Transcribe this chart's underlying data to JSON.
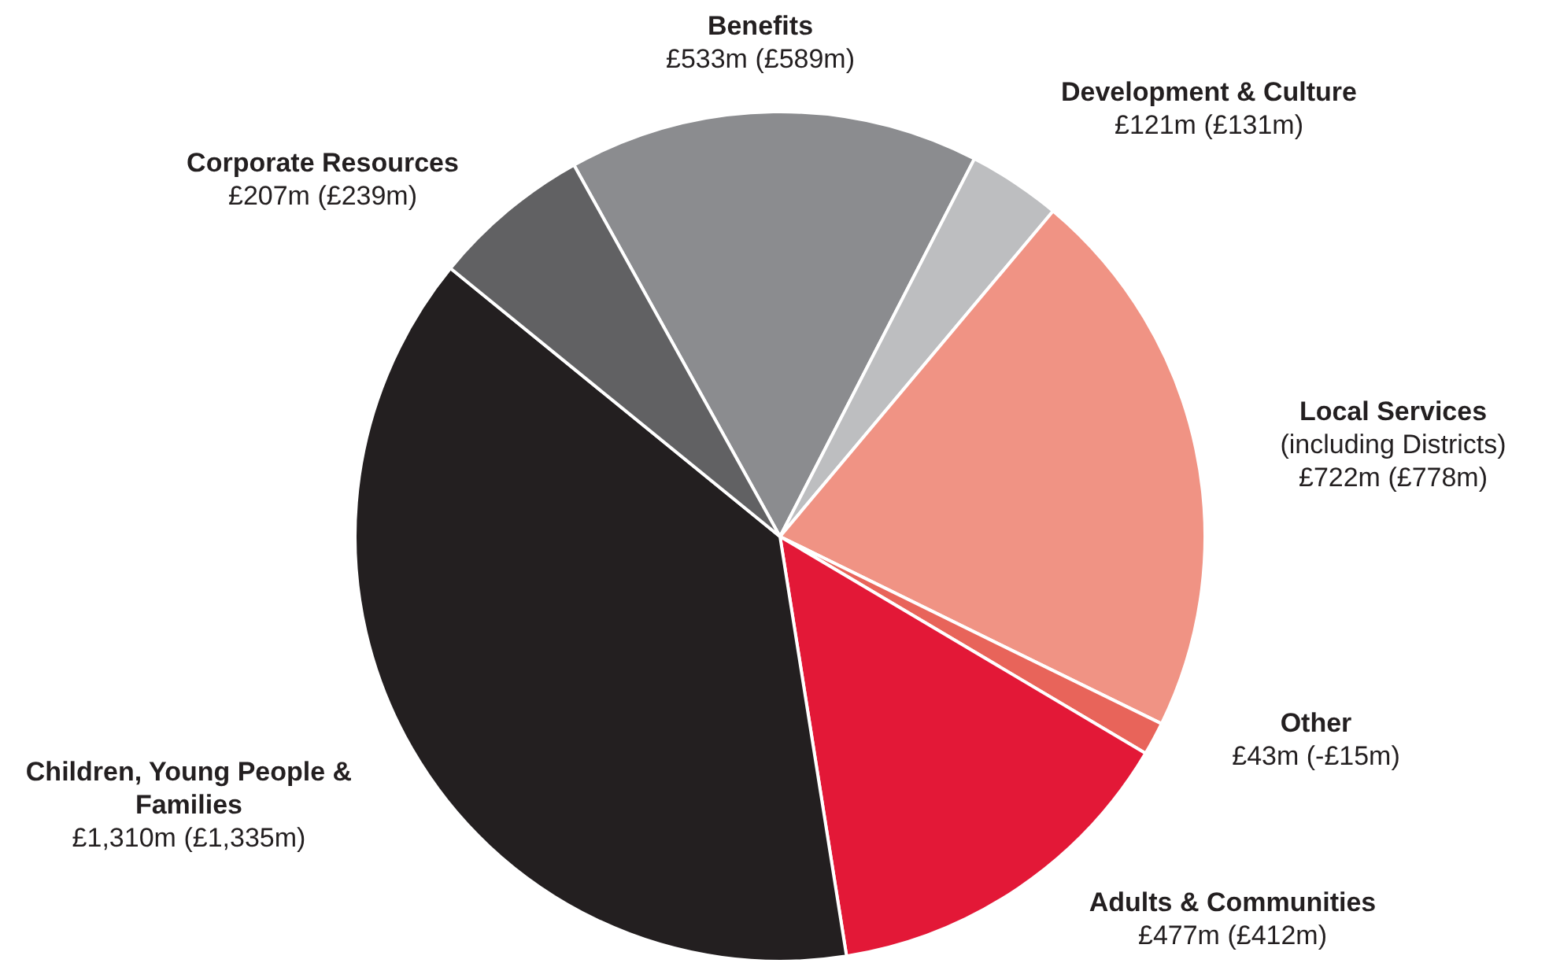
{
  "chart_data": {
    "type": "pie",
    "categories": [
      "Benefits",
      "Development & Culture",
      "Local Services (including Districts)",
      "Other",
      "Adults & Communities",
      "Children, Young People & Families",
      "Corporate Resources"
    ],
    "values": [
      533,
      121,
      722,
      43,
      477,
      1310,
      207
    ],
    "colors": [
      "#8b8c8f",
      "#bdbec0",
      "#f09384",
      "#e8645a",
      "#e31837",
      "#231f20",
      "#616163"
    ],
    "value_labels": [
      "£533m",
      "£121m",
      "£722m",
      "£43m",
      "£477m",
      "£1,310m",
      "£207m"
    ],
    "annotations": [
      {
        "text": "(£589m)",
        "x": "Benefits"
      },
      {
        "text": "(£131m)",
        "x": "Development & Culture"
      },
      {
        "text": "(£778m)",
        "x": "Local Services (including Districts)"
      },
      {
        "text": "(-£15m)",
        "x": "Other"
      },
      {
        "text": "(£412m)",
        "x": "Adults & Communities"
      },
      {
        "text": "(£1,335m)",
        "x": "Children, Young People & Families"
      },
      {
        "text": "(£239m)",
        "x": "Corporate Resources"
      }
    ]
  }
}
